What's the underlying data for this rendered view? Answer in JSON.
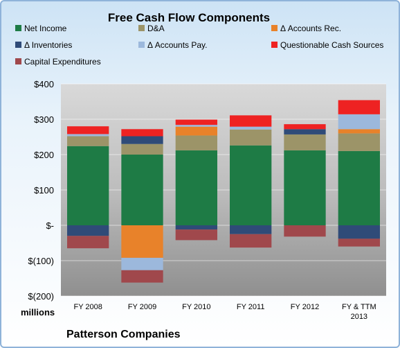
{
  "chart_data": {
    "type": "bar",
    "stacked": true,
    "title": "Free Cash Flow Components",
    "company": "Patterson Companies",
    "unit_label": "millions",
    "categories": [
      "FY 2008",
      "FY 2009",
      "FY 2010",
      "FY 2011",
      "FY 2012",
      "FY & TTM 2013"
    ],
    "y_ticks": [
      {
        "value": 400,
        "label": "$400"
      },
      {
        "value": 300,
        "label": "$300"
      },
      {
        "value": 200,
        "label": "$200"
      },
      {
        "value": 100,
        "label": "$100"
      },
      {
        "value": 0,
        "label": "$-"
      },
      {
        "value": -100,
        "label": "$(100)"
      },
      {
        "value": -200,
        "label": "$(200)"
      }
    ],
    "ylim": [
      -200,
      400
    ],
    "legend_position": "top",
    "series": [
      {
        "name": "Net Income",
        "color": "#1e7b45",
        "values": [
          224,
          200,
          212,
          226,
          212,
          210
        ]
      },
      {
        "name": "D&A",
        "color": "#9c9468",
        "values": [
          28,
          30,
          42,
          45,
          45,
          50
        ]
      },
      {
        "name": "Δ Accounts Rec.",
        "color": "#e8822a",
        "values": [
          0,
          -92,
          25,
          0,
          0,
          12
        ]
      },
      {
        "name": "Δ Inventories",
        "color": "#2f4b78",
        "values": [
          -30,
          22,
          -12,
          -25,
          15,
          -38
        ]
      },
      {
        "name": "Δ Accounts Pay.",
        "color": "#9cb8dc",
        "values": [
          6,
          -35,
          5,
          8,
          0,
          42
        ]
      },
      {
        "name": "Questionable Cash Sources",
        "color": "#ee2222",
        "values": [
          22,
          20,
          15,
          32,
          14,
          40
        ]
      },
      {
        "name": "Capital Expenditures",
        "color": "#a0484c",
        "values": [
          -35,
          -35,
          -30,
          -38,
          -32,
          -22
        ]
      }
    ]
  }
}
